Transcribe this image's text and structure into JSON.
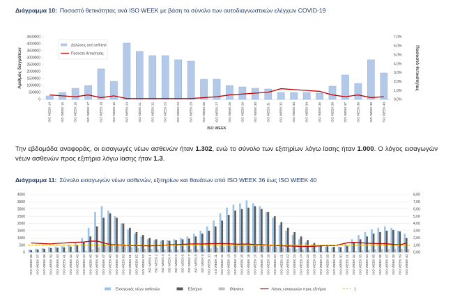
{
  "chart_data": [
    {
      "type": "combo",
      "title_label": "Διάγραμμα 10:",
      "title": "Ποσοστό θετικότητας ανά ISO WEEK με βάση το σύνολο των αυτοδιαγνωστικών ελέγχων COVID-19",
      "xlabel": "ISO WEEK",
      "ylabel": "Αριθμός δειγμάτων",
      "y2label": "Ποσοστό θετικότητας",
      "grid": false,
      "legend": "top-left",
      "categories": [
        "ISO WEEK 14",
        "ISO WEEK 15",
        "ISO WEEK 16",
        "ISO WEEK 17",
        "ISO WEEK 18",
        "ISO WEEK 19",
        "ISO WEEK 20",
        "ISO WEEK 21",
        "ISO WEEK 22",
        "ISO WEEK 23",
        "ISO WEEK 24",
        "ISO WEEK 25",
        "ISO WEEK 26",
        "ISO WEEK 27",
        "ISO WEEK 28",
        "ISO WEEK 29",
        "ISO WEEK 30",
        "ISO WEEK 31",
        "ISO WEEK 32",
        "ISO WEEK 33",
        "ISO WEEK 34",
        "ISO WEEK 35",
        "ISO WEEK 36",
        "ISO WEEK 37",
        "ISO WEEK 38",
        "ISO WEEK 39",
        "ISO WEEK 40"
      ],
      "series": [
        {
          "name": "Δηλώσεις από self-test",
          "type": "bar",
          "color": "#b4c9e8",
          "values": [
            250000,
            500000,
            800000,
            1000000,
            2200000,
            1300000,
            4050000,
            3450000,
            3150000,
            3150000,
            2850000,
            2750000,
            1450000,
            1450000,
            1000000,
            900000,
            800000,
            750000,
            500000,
            500000,
            500000,
            450000,
            950000,
            1750000,
            1150000,
            2850000,
            1900000
          ]
        },
        {
          "name": "Ποσοστό θετικότητας",
          "type": "line",
          "axis": "y2",
          "color": "#c00000",
          "values": [
            0.5,
            0.4,
            0.3,
            0.5,
            0.2,
            0.4,
            0.1,
            0.1,
            0.1,
            0.1,
            0.1,
            0.1,
            0.2,
            0.3,
            0.5,
            0.6,
            0.7,
            0.8,
            1.2,
            1.1,
            1.0,
            0.9,
            0.5,
            0.3,
            0.5,
            0.2,
            0.3
          ]
        }
      ],
      "ylim": [
        0,
        4500000
      ],
      "yticks": [
        0,
        500000,
        1000000,
        1500000,
        2000000,
        2500000,
        3000000,
        3500000,
        4000000,
        4500000
      ],
      "y2lim": [
        0,
        7
      ],
      "y2ticks": [
        {
          "value": 0,
          "label": "0,0%"
        },
        {
          "value": 1,
          "label": "1,0%"
        },
        {
          "value": 2,
          "label": "2,0%"
        },
        {
          "value": 3,
          "label": "3,0%"
        },
        {
          "value": 4,
          "label": "4,0%"
        },
        {
          "value": 5,
          "label": "5,0%"
        },
        {
          "value": 6,
          "label": "6,0%"
        },
        {
          "value": 7,
          "label": "7,0%"
        }
      ]
    },
    {
      "type": "combo",
      "title_label": "Διάγραμμα 11:",
      "title": "Σύνολο εισαγωγών νέων ασθενών, εξιτηρίων και θανάτων από ISO WEEK 36 έως ISO WEEK 40",
      "grid": true,
      "legend": "bottom",
      "categories": [
        "ISO WEEK 36",
        "ISO WEEK 37",
        "ISO WEEK 38",
        "ISO WEEK 39",
        "ISO WEEK 40",
        "ISO WEEK 41",
        "ISO WEEK 42",
        "ISO WEEK 43",
        "ISO WEEK 44",
        "ISO WEEK 45",
        "ISO WEEK 46",
        "ISO WEEK 47",
        "ISO WEEK 48",
        "ISO WEEK 49",
        "ISO WEEK 50",
        "ISO WEEK 51",
        "ISO WEEK 52",
        "ISO WEEK 53",
        "ISO WEEK 1",
        "ISO WEEK 2",
        "ISO WEEK 3",
        "ISO WEEK 4",
        "ISO WEEK 5",
        "ISO WEEK 6",
        "ISO WEEK 7",
        "ISO WEEK 8",
        "ISO WEEK 9",
        "ISO WEEK 10",
        "ISO WEEK 11",
        "ISO WEEK 12",
        "ISO WEEK 13",
        "ISO WEEK 14",
        "ISO WEEK 15",
        "ISO WEEK 16",
        "ISO WEEK 17",
        "ISO WEEK 18",
        "ISO WEEK 19",
        "ISO WEEK 20",
        "ISO WEEK 21",
        "ISO WEEK 22",
        "ISO WEEK 23",
        "ISO WEEK 24",
        "ISO WEEK 25",
        "ISO WEEK 26",
        "ISO WEEK 27",
        "ISO WEEK 28",
        "ISO WEEK 29",
        "ISO WEEK 30",
        "ISO WEEK 31",
        "ISO WEEK 32",
        "ISO WEEK 33",
        "ISO WEEK 34",
        "ISO WEEK 35",
        "ISO WEEK 36",
        "ISO WEEK 37",
        "ISO WEEK 38",
        "ISO WEEK 39",
        "ISO WEEK 40"
      ],
      "series": [
        {
          "name": "Εισαγωγές νέων ασθενών",
          "type": "bar",
          "color": "#9dc3e6",
          "values": [
            200,
            250,
            300,
            350,
            400,
            450,
            550,
            700,
            1000,
            1700,
            2800,
            3200,
            2900,
            2500,
            2000,
            1600,
            1300,
            1100,
            900,
            850,
            800,
            850,
            900,
            1000,
            1100,
            1300,
            1500,
            1800,
            2200,
            2700,
            3100,
            3300,
            3400,
            3600,
            3400,
            3200,
            2800,
            2400,
            1900,
            1500,
            1200,
            900,
            700,
            550,
            450,
            400,
            350,
            400,
            600,
            900,
            1200,
            1400,
            1600,
            1700,
            1800,
            1700,
            1500,
            1300
          ]
        },
        {
          "name": "Εξιτήρια",
          "type": "bar",
          "color": "#595959",
          "values": [
            150,
            200,
            250,
            300,
            320,
            350,
            400,
            500,
            700,
            1100,
            1800,
            2400,
            2700,
            2400,
            2000,
            1700,
            1400,
            1200,
            1000,
            900,
            850,
            800,
            850,
            900,
            950,
            1100,
            1300,
            1500,
            1800,
            2200,
            2600,
            2900,
            3000,
            3100,
            3200,
            3000,
            2800,
            2500,
            2100,
            1700,
            1400,
            1100,
            850,
            650,
            500,
            420,
            380,
            360,
            450,
            650,
            900,
            1100,
            1300,
            1400,
            1500,
            1550,
            1450,
            1000
          ]
        },
        {
          "name": "Θάνατοι",
          "type": "bar",
          "color": "#bfbfbf",
          "values": [
            20,
            25,
            30,
            35,
            40,
            50,
            60,
            80,
            120,
            200,
            350,
            500,
            600,
            550,
            450,
            350,
            300,
            250,
            220,
            200,
            190,
            180,
            180,
            190,
            200,
            220,
            250,
            280,
            320,
            380,
            450,
            500,
            550,
            560,
            540,
            500,
            450,
            400,
            330,
            280,
            230,
            180,
            140,
            110,
            80,
            60,
            50,
            50,
            60,
            90,
            130,
            170,
            200,
            220,
            240,
            250,
            240,
            220
          ]
        },
        {
          "name": "Λόγος εισαγωγών προς εξιτήρια",
          "type": "line",
          "axis": "y2",
          "color": "#c00000",
          "values": [
            1.3,
            1.25,
            1.2,
            1.17,
            1.25,
            1.29,
            1.38,
            1.4,
            1.43,
            1.55,
            1.56,
            1.33,
            1.07,
            1.04,
            1.0,
            0.94,
            0.93,
            0.92,
            0.9,
            0.94,
            0.94,
            1.06,
            1.06,
            1.11,
            1.16,
            1.18,
            1.15,
            1.2,
            1.22,
            1.23,
            1.19,
            1.14,
            1.13,
            1.16,
            1.06,
            1.07,
            1.0,
            0.96,
            0.9,
            0.88,
            0.86,
            0.82,
            0.82,
            0.85,
            0.9,
            0.95,
            0.92,
            1.11,
            1.33,
            1.38,
            1.33,
            1.27,
            1.23,
            1.21,
            1.2,
            1.1,
            1.03,
            1.3
          ]
        }
      ],
      "reference_lines": [
        {
          "name": "1",
          "value": 1,
          "axis": "y2",
          "color": "#ffc000"
        }
      ],
      "ylim": [
        0,
        4000
      ],
      "yticks": [
        0,
        500,
        1000,
        1500,
        2000,
        2500,
        3000,
        3500,
        4000
      ],
      "y2lim": [
        0,
        8
      ],
      "y2ticks": [
        {
          "value": 0,
          "label": "0,00"
        },
        {
          "value": 1,
          "label": "1,00"
        },
        {
          "value": 2,
          "label": "2,00"
        },
        {
          "value": 3,
          "label": "3,00"
        },
        {
          "value": 4,
          "label": "4,00"
        },
        {
          "value": 5,
          "label": "5,00"
        },
        {
          "value": 6,
          "label": "6,00"
        },
        {
          "value": 7,
          "label": "7,00"
        },
        {
          "value": 8,
          "label": "8,00"
        }
      ]
    }
  ],
  "paragraph": {
    "segments": [
      {
        "text": "Την εβδομάδα αναφοράς, οι εισαγωγές νέων ασθενών ήταν ",
        "bold": false
      },
      {
        "text": "1.302",
        "bold": true
      },
      {
        "text": ", ενώ το σύνολο των εξιτηρίων λόγω ίασης ήταν ",
        "bold": false
      },
      {
        "text": "1.000",
        "bold": true
      },
      {
        "text": ". Ο λόγος εισαγωγών νέων ασθενών προς εξιτήρια λόγω ίασης ήταν ",
        "bold": false
      },
      {
        "text": "1.3",
        "bold": true
      },
      {
        "text": ".",
        "bold": false
      }
    ]
  }
}
